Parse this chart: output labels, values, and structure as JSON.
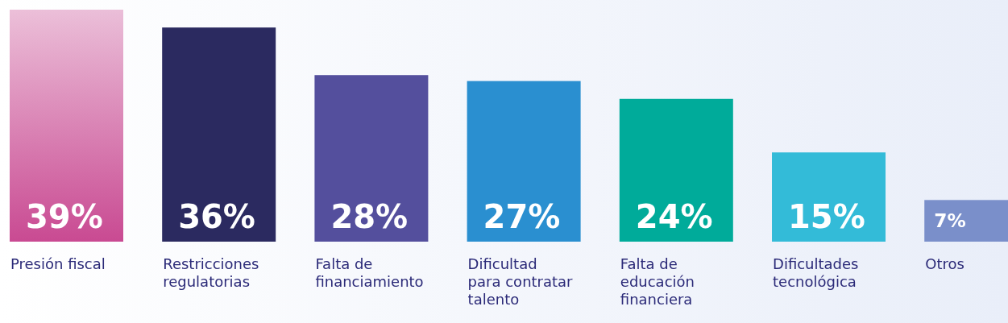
{
  "chart_data": {
    "type": "bar",
    "categories": [
      "Presión fiscal",
      "Restricciones regulatorias",
      "Falta de financiamiento",
      "Dificultad para contratar talento",
      "Falta de educación financiera",
      "Dificultades tecnológica",
      "Otros"
    ],
    "values": [
      39,
      36,
      28,
      27,
      24,
      15,
      7
    ],
    "value_labels": [
      "39%",
      "36%",
      "28%",
      "27%",
      "24%",
      "15%",
      "7%"
    ],
    "colors": [
      "#c94a92",
      "#2b2a60",
      "#544f9d",
      "#2a8fd0",
      "#00ab9a",
      "#33bbd8",
      "#7a8fca"
    ]
  }
}
